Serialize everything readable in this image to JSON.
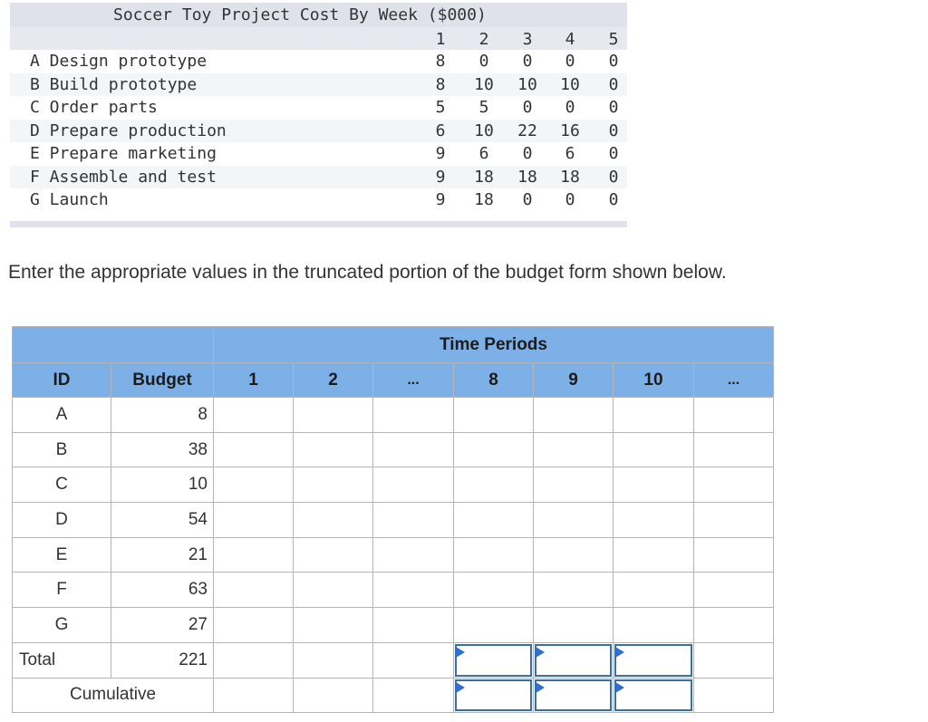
{
  "cost_table": {
    "title": "Soccer Toy Project Cost By Week ($000)",
    "weeks": [
      "1",
      "2",
      "3",
      "4",
      "5"
    ],
    "rows": [
      {
        "label": "A Design prototype",
        "values": [
          "8",
          "0",
          "0",
          "0",
          "0"
        ]
      },
      {
        "label": "B Build prototype",
        "values": [
          "8",
          "10",
          "10",
          "10",
          "0"
        ]
      },
      {
        "label": "C Order parts",
        "values": [
          "5",
          "5",
          "0",
          "0",
          "0"
        ]
      },
      {
        "label": "D Prepare production",
        "values": [
          "6",
          "10",
          "22",
          "16",
          "0"
        ]
      },
      {
        "label": "E Prepare marketing",
        "values": [
          "9",
          "6",
          "0",
          "6",
          "0"
        ]
      },
      {
        "label": "F Assemble and test",
        "values": [
          "9",
          "18",
          "18",
          "18",
          "0"
        ]
      },
      {
        "label": "G Launch",
        "values": [
          "9",
          "18",
          "0",
          "0",
          "0"
        ]
      }
    ]
  },
  "instruction": "Enter the appropriate values in the truncated portion of the budget form shown below.",
  "budget_form": {
    "time_periods_label": "Time Periods",
    "id_header": "ID",
    "budget_header": "Budget",
    "periods": [
      "1",
      "2",
      "...",
      "8",
      "9",
      "10",
      "..."
    ],
    "rows": [
      {
        "id": "A",
        "budget": "8"
      },
      {
        "id": "B",
        "budget": "38"
      },
      {
        "id": "C",
        "budget": "10"
      },
      {
        "id": "D",
        "budget": "54"
      },
      {
        "id": "E",
        "budget": "21"
      },
      {
        "id": "F",
        "budget": "63"
      },
      {
        "id": "G",
        "budget": "27"
      }
    ],
    "total_label": "Total",
    "total_budget": "221",
    "cumulative_label": "Cumulative",
    "total_inputs": [
      "",
      "",
      ""
    ],
    "cumulative_inputs": [
      "",
      "",
      ""
    ]
  }
}
